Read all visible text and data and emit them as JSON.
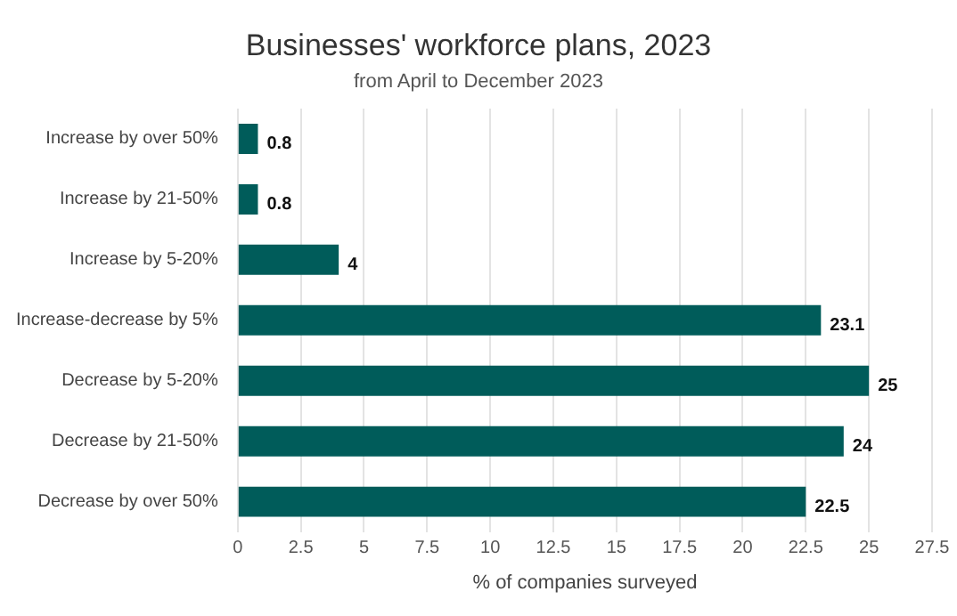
{
  "chart_data": {
    "type": "bar",
    "orientation": "horizontal",
    "title": "Businesses' workforce plans, 2023",
    "subtitle": "from April to December 2023",
    "xlabel": "% of companies surveyed",
    "categories": [
      "Increase by over 50%",
      "Increase by 21-50%",
      "Increase by 5-20%",
      "Increase-decrease by 5%",
      "Decrease by 5-20%",
      "Decrease by 21-50%",
      "Decrease by over 50%"
    ],
    "values": [
      0.8,
      0.8,
      4,
      23.1,
      25,
      24,
      22.5
    ],
    "color": "#005c5a",
    "xlim": [
      0,
      27.5
    ],
    "xticks": [
      0,
      2.5,
      5,
      7.5,
      10,
      12.5,
      15,
      17.5,
      20,
      22.5,
      25,
      27.5
    ],
    "grid": "x",
    "data_labels": true,
    "legend": false
  }
}
